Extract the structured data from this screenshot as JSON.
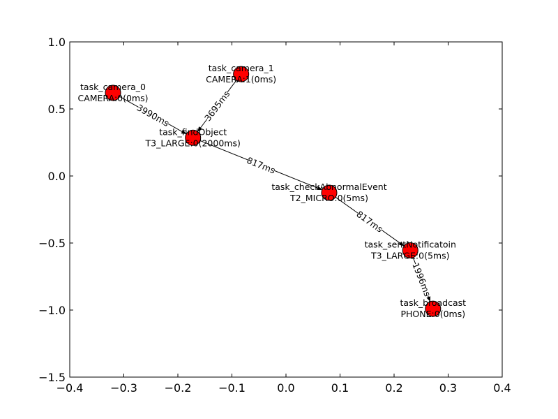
{
  "axes": {
    "xlim": [
      -0.4,
      0.4
    ],
    "ylim": [
      -1.5,
      1.0
    ],
    "xticks": [
      -0.4,
      -0.3,
      -0.2,
      -0.1,
      0.0,
      0.1,
      0.2,
      0.3,
      0.4
    ],
    "xtick_labels": [
      "−0.4",
      "−0.3",
      "−0.2",
      "−0.1",
      "0.0",
      "0.1",
      "0.2",
      "0.3",
      "0.4"
    ],
    "yticks": [
      1.0,
      0.5,
      0.0,
      -0.5,
      -1.0,
      -1.5
    ],
    "ytick_labels": [
      "1.0",
      "0.5",
      "0.0",
      "−0.5",
      "−1.0",
      "−1.5"
    ]
  },
  "colors": {
    "node_fill": "#ff0000",
    "node_stroke": "#000000",
    "edge": "#000000",
    "axis": "#000000"
  },
  "nodes": [
    {
      "id": "camera0",
      "x": -0.32,
      "y": 0.62,
      "name": "task_camera_0",
      "detail": "CAMERA:0(0ms)"
    },
    {
      "id": "camera1",
      "x": -0.083,
      "y": 0.76,
      "name": "task_camera_1",
      "detail": "CAMERA:1(0ms)"
    },
    {
      "id": "find",
      "x": -0.172,
      "y": 0.285,
      "name": "task_findObject",
      "detail": "T3_LARGE:0(2000ms)"
    },
    {
      "id": "check",
      "x": 0.08,
      "y": -0.125,
      "name": "task_checkAbnormalEvent",
      "detail": "T2_MICRO:0(5ms)"
    },
    {
      "id": "notify",
      "x": 0.23,
      "y": -0.555,
      "name": "task_sentNotificatoin",
      "detail": "T3_LARGE:0(5ms)"
    },
    {
      "id": "broadcast",
      "x": 0.272,
      "y": -0.99,
      "name": "task_broadcast",
      "detail": "PHONE:0(0ms)"
    }
  ],
  "edges": [
    {
      "source": "camera0",
      "target": "find",
      "label": "3990ms"
    },
    {
      "source": "camera1",
      "target": "find",
      "label": "3695ms"
    },
    {
      "source": "find",
      "target": "check",
      "label": "817ms"
    },
    {
      "source": "check",
      "target": "notify",
      "label": "817ms"
    },
    {
      "source": "notify",
      "target": "broadcast",
      "label": "1996ms"
    }
  ]
}
